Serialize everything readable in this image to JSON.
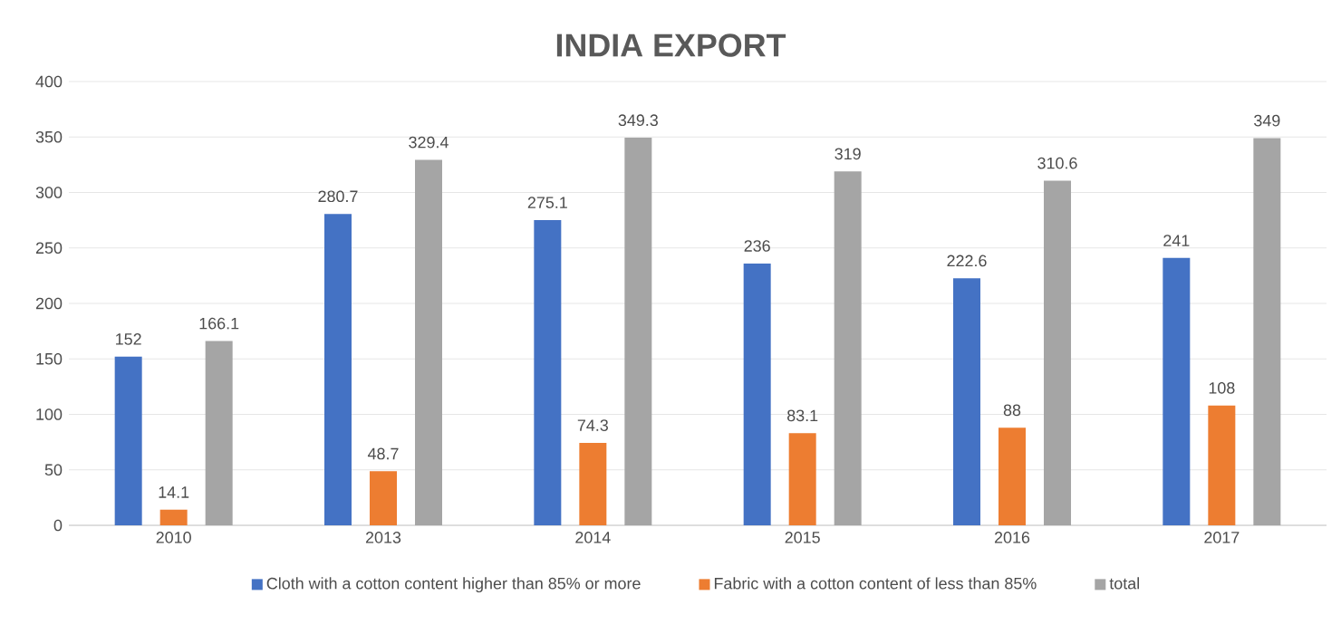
{
  "chart_data": {
    "type": "bar",
    "title": "INDIA EXPORT",
    "categories": [
      "2010",
      "2013",
      "2014",
      "2015",
      "2016",
      "2017"
    ],
    "series": [
      {
        "name": "Cloth with a cotton content higher than 85% or more",
        "color": "#4472c4",
        "values": [
          152,
          280.7,
          275.1,
          236,
          222.6,
          241
        ]
      },
      {
        "name": "Fabric with a cotton content of less than 85%",
        "color": "#ed7d31",
        "values": [
          14.1,
          48.7,
          74.3,
          83.1,
          88,
          108
        ]
      },
      {
        "name": "total",
        "color": "#a5a5a5",
        "values": [
          166.1,
          329.4,
          349.3,
          319,
          310.6,
          349
        ]
      }
    ],
    "ylim": [
      0,
      400
    ],
    "yticks": [
      0,
      50,
      100,
      150,
      200,
      250,
      300,
      350,
      400
    ],
    "grid": "y",
    "legend": "bottom",
    "data_labels": true
  }
}
